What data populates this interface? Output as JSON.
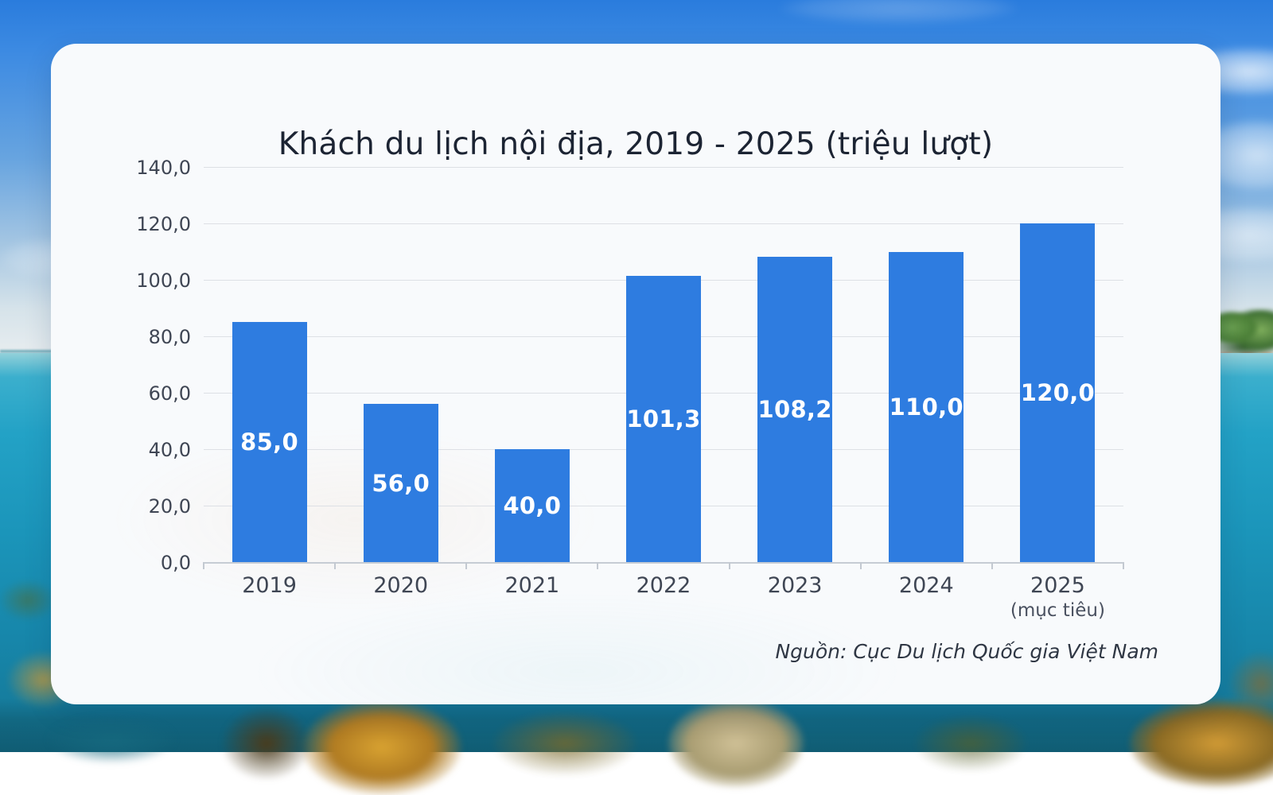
{
  "chart_data": {
    "type": "bar",
    "title": "Khách du lịch nội địa, 2019 - 2025 (triệu lượt)",
    "categories": [
      "2019",
      "2020",
      "2021",
      "2022",
      "2023",
      "2024",
      "2025"
    ],
    "category_notes": [
      "",
      "",
      "",
      "",
      "",
      "",
      "(mục tiêu)"
    ],
    "values": [
      85.0,
      56.0,
      40.0,
      101.3,
      108.2,
      110.0,
      120.0
    ],
    "value_labels": [
      "85,0",
      "56,0",
      "40,0",
      "101,3",
      "108,2",
      "110,0",
      "120,0"
    ],
    "y_ticks": [
      "140,0",
      "120,0",
      "100,0",
      "80,0",
      "60,0",
      "40,0",
      "20,0",
      "0,0"
    ],
    "ylim": [
      0,
      140
    ],
    "xlabel": "",
    "ylabel": "",
    "grid": true,
    "legend": "none",
    "bar_color": "#2e7ce0",
    "title_color": "#1c2433",
    "source": "Nguồn: Cục Du lịch Quốc gia Việt Nam"
  }
}
